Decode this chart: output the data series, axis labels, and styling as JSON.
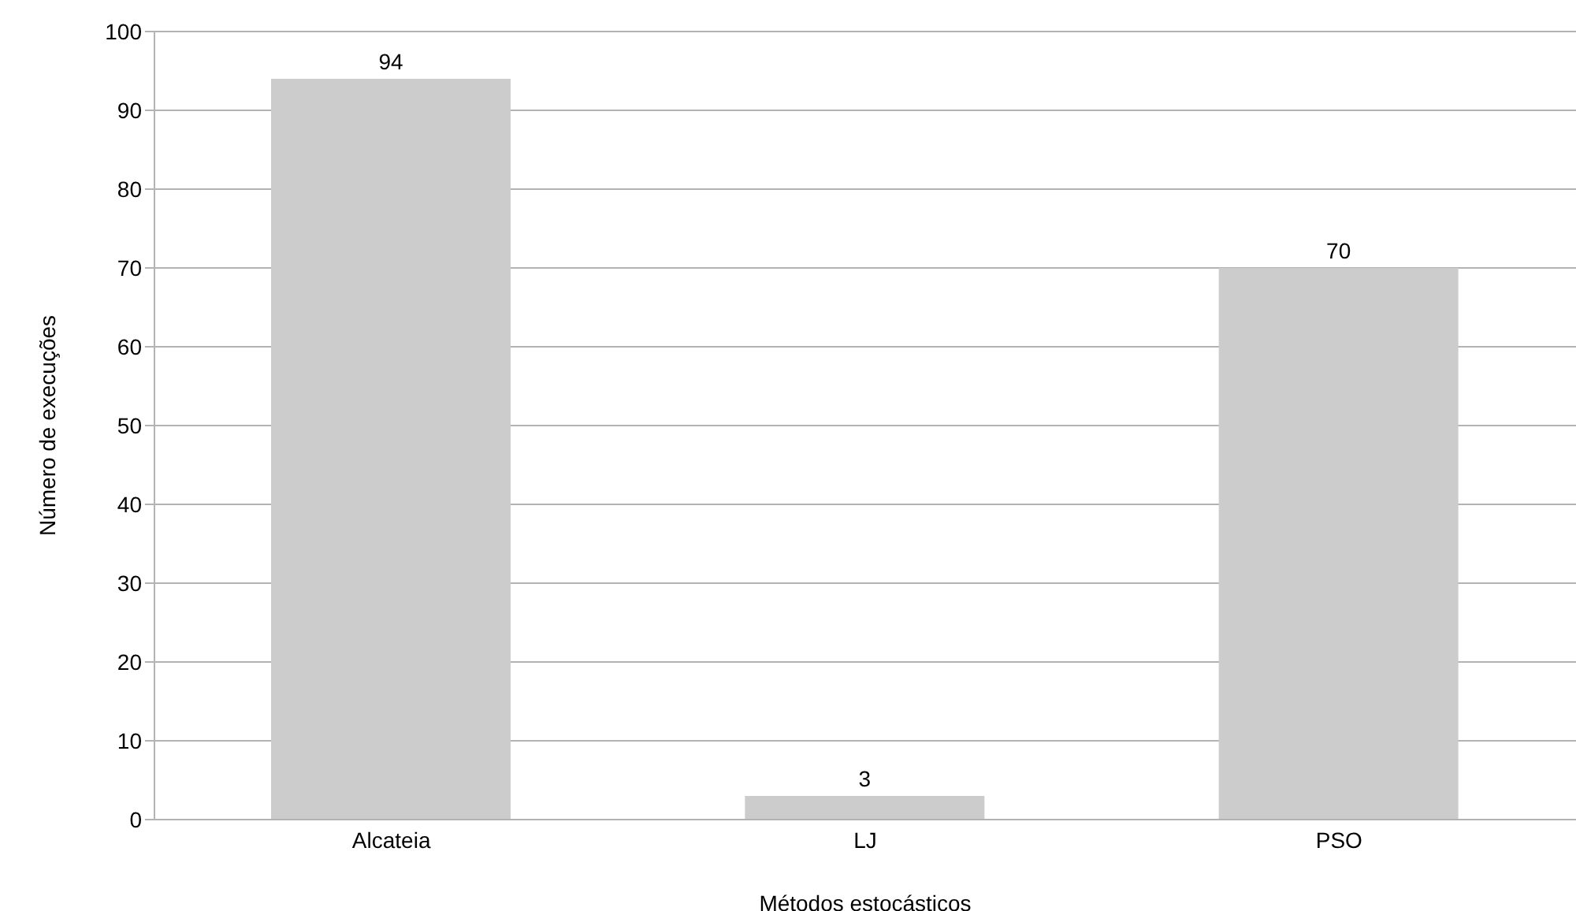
{
  "chart_data": {
    "type": "bar",
    "xlabel": "Métodos estocásticos",
    "ylabel": "Número de execuções",
    "categories": [
      "Alcateia",
      "LJ",
      "PSO"
    ],
    "values": [
      94,
      3,
      70
    ],
    "color": "#cccccc",
    "ylim": [
      0,
      100
    ],
    "yticks": [
      0,
      10,
      20,
      30,
      40,
      50,
      60,
      70,
      80,
      90,
      100
    ],
    "grid": "y",
    "data_labels": true
  }
}
